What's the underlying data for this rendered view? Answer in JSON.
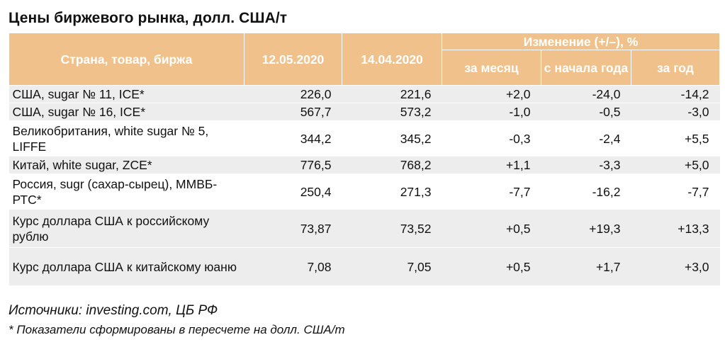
{
  "title": "Цены биржевого рынка, долл. США/т",
  "header": {
    "col_name": "Страна, товар, биржа",
    "col_date1": "12.05.2020",
    "col_date2": "14.04.2020",
    "change_group": "Изменение (+/–), %",
    "change_month": "за месяц",
    "change_ytd": "с начала года",
    "change_year": "за год"
  },
  "rows": [
    {
      "name": "США, sugar № 11, ICE*",
      "d1": "226,0",
      "d2": "221,6",
      "month": "+2,0",
      "ytd": "-24,0",
      "year": "-14,2"
    },
    {
      "name": "США, sugar № 16, ICE*",
      "d1": "567,7",
      "d2": "573,2",
      "month": "-1,0",
      "ytd": "-0,5",
      "year": "-3,0"
    },
    {
      "name": "Великобритания, white sugar № 5, LIFFE",
      "d1": "344,2",
      "d2": "345,2",
      "month": "-0,3",
      "ytd": "-2,4",
      "year": "+5,5"
    },
    {
      "name": "Китай, white sugar, ZCE*",
      "d1": "776,5",
      "d2": "768,2",
      "month": "+1,1",
      "ytd": "-3,3",
      "year": "+5,0"
    },
    {
      "name": "Россия, sugr (сахар-сырец), ММВБ-РТС*",
      "d1": "250,4",
      "d2": "271,3",
      "month": "-7,7",
      "ytd": "-16,2",
      "year": "-7,7"
    },
    {
      "name": "Курс доллара США к российскому рублю",
      "d1": "73,87",
      "d2": "73,52",
      "month": "+0,5",
      "ytd": "+19,3",
      "year": "+13,3"
    },
    {
      "name": "Курс доллара США к китайскому юаню",
      "d1": "7,08",
      "d2": "7,05",
      "month": "+0,5",
      "ytd": "+1,7",
      "year": "+3,0"
    }
  ],
  "sources": "Источники: investing.com, ЦБ РФ",
  "note": "* Показатели сформированы в пересчете на долл. США/т"
}
